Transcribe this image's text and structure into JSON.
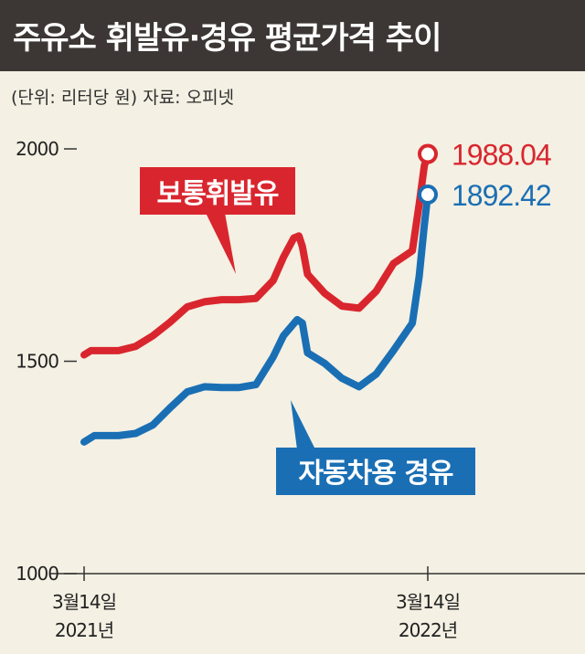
{
  "header": {
    "title": "주유소 휘발유·경유 평균가격 추이",
    "unit": "(단위: 리터당 원) 자료: 오피넷"
  },
  "colors": {
    "gasoline": "#d9262e",
    "diesel": "#1a6fb4",
    "title_bg": "#3c3734",
    "background": "#f4f0e3",
    "axis": "#333333"
  },
  "chart_data": {
    "type": "line",
    "title": "주유소 휘발유·경유 평균가격 추이",
    "ylabel": "",
    "xlabel": "",
    "ylim": [
      1000,
      2000
    ],
    "yticks": [
      "2000",
      "1500",
      "1000"
    ],
    "xticks": [
      {
        "line1": "3월14일",
        "line2": "2021년"
      },
      {
        "line1": "3월14일",
        "line2": "2022년"
      }
    ],
    "grid": false,
    "series": [
      {
        "name": "보통휘발유",
        "end_label": "1988.04",
        "points": [
          [
            0,
            1515
          ],
          [
            0.02,
            1525
          ],
          [
            0.05,
            1525
          ],
          [
            0.1,
            1525
          ],
          [
            0.15,
            1535
          ],
          [
            0.2,
            1560
          ],
          [
            0.25,
            1592
          ],
          [
            0.3,
            1628
          ],
          [
            0.35,
            1640
          ],
          [
            0.4,
            1645
          ],
          [
            0.45,
            1645
          ],
          [
            0.5,
            1648
          ],
          [
            0.55,
            1690
          ],
          [
            0.58,
            1745
          ],
          [
            0.61,
            1790
          ],
          [
            0.625,
            1795
          ],
          [
            0.635,
            1770
          ],
          [
            0.65,
            1705
          ],
          [
            0.7,
            1660
          ],
          [
            0.75,
            1630
          ],
          [
            0.8,
            1625
          ],
          [
            0.85,
            1665
          ],
          [
            0.9,
            1730
          ],
          [
            0.955,
            1760
          ],
          [
            0.975,
            1870
          ],
          [
            0.99,
            1960
          ],
          [
            1.0,
            1988.04
          ]
        ]
      },
      {
        "name": "자동차용 경유",
        "end_label": "1892.42",
        "points": [
          [
            0,
            1310
          ],
          [
            0.03,
            1325
          ],
          [
            0.1,
            1325
          ],
          [
            0.15,
            1330
          ],
          [
            0.2,
            1350
          ],
          [
            0.25,
            1390
          ],
          [
            0.3,
            1428
          ],
          [
            0.35,
            1440
          ],
          [
            0.4,
            1438
          ],
          [
            0.45,
            1438
          ],
          [
            0.5,
            1445
          ],
          [
            0.55,
            1510
          ],
          [
            0.58,
            1560
          ],
          [
            0.62,
            1598
          ],
          [
            0.635,
            1590
          ],
          [
            0.65,
            1520
          ],
          [
            0.7,
            1495
          ],
          [
            0.75,
            1460
          ],
          [
            0.8,
            1440
          ],
          [
            0.85,
            1470
          ],
          [
            0.9,
            1525
          ],
          [
            0.955,
            1590
          ],
          [
            0.975,
            1700
          ],
          [
            0.99,
            1820
          ],
          [
            1.0,
            1892.42
          ]
        ]
      }
    ]
  }
}
